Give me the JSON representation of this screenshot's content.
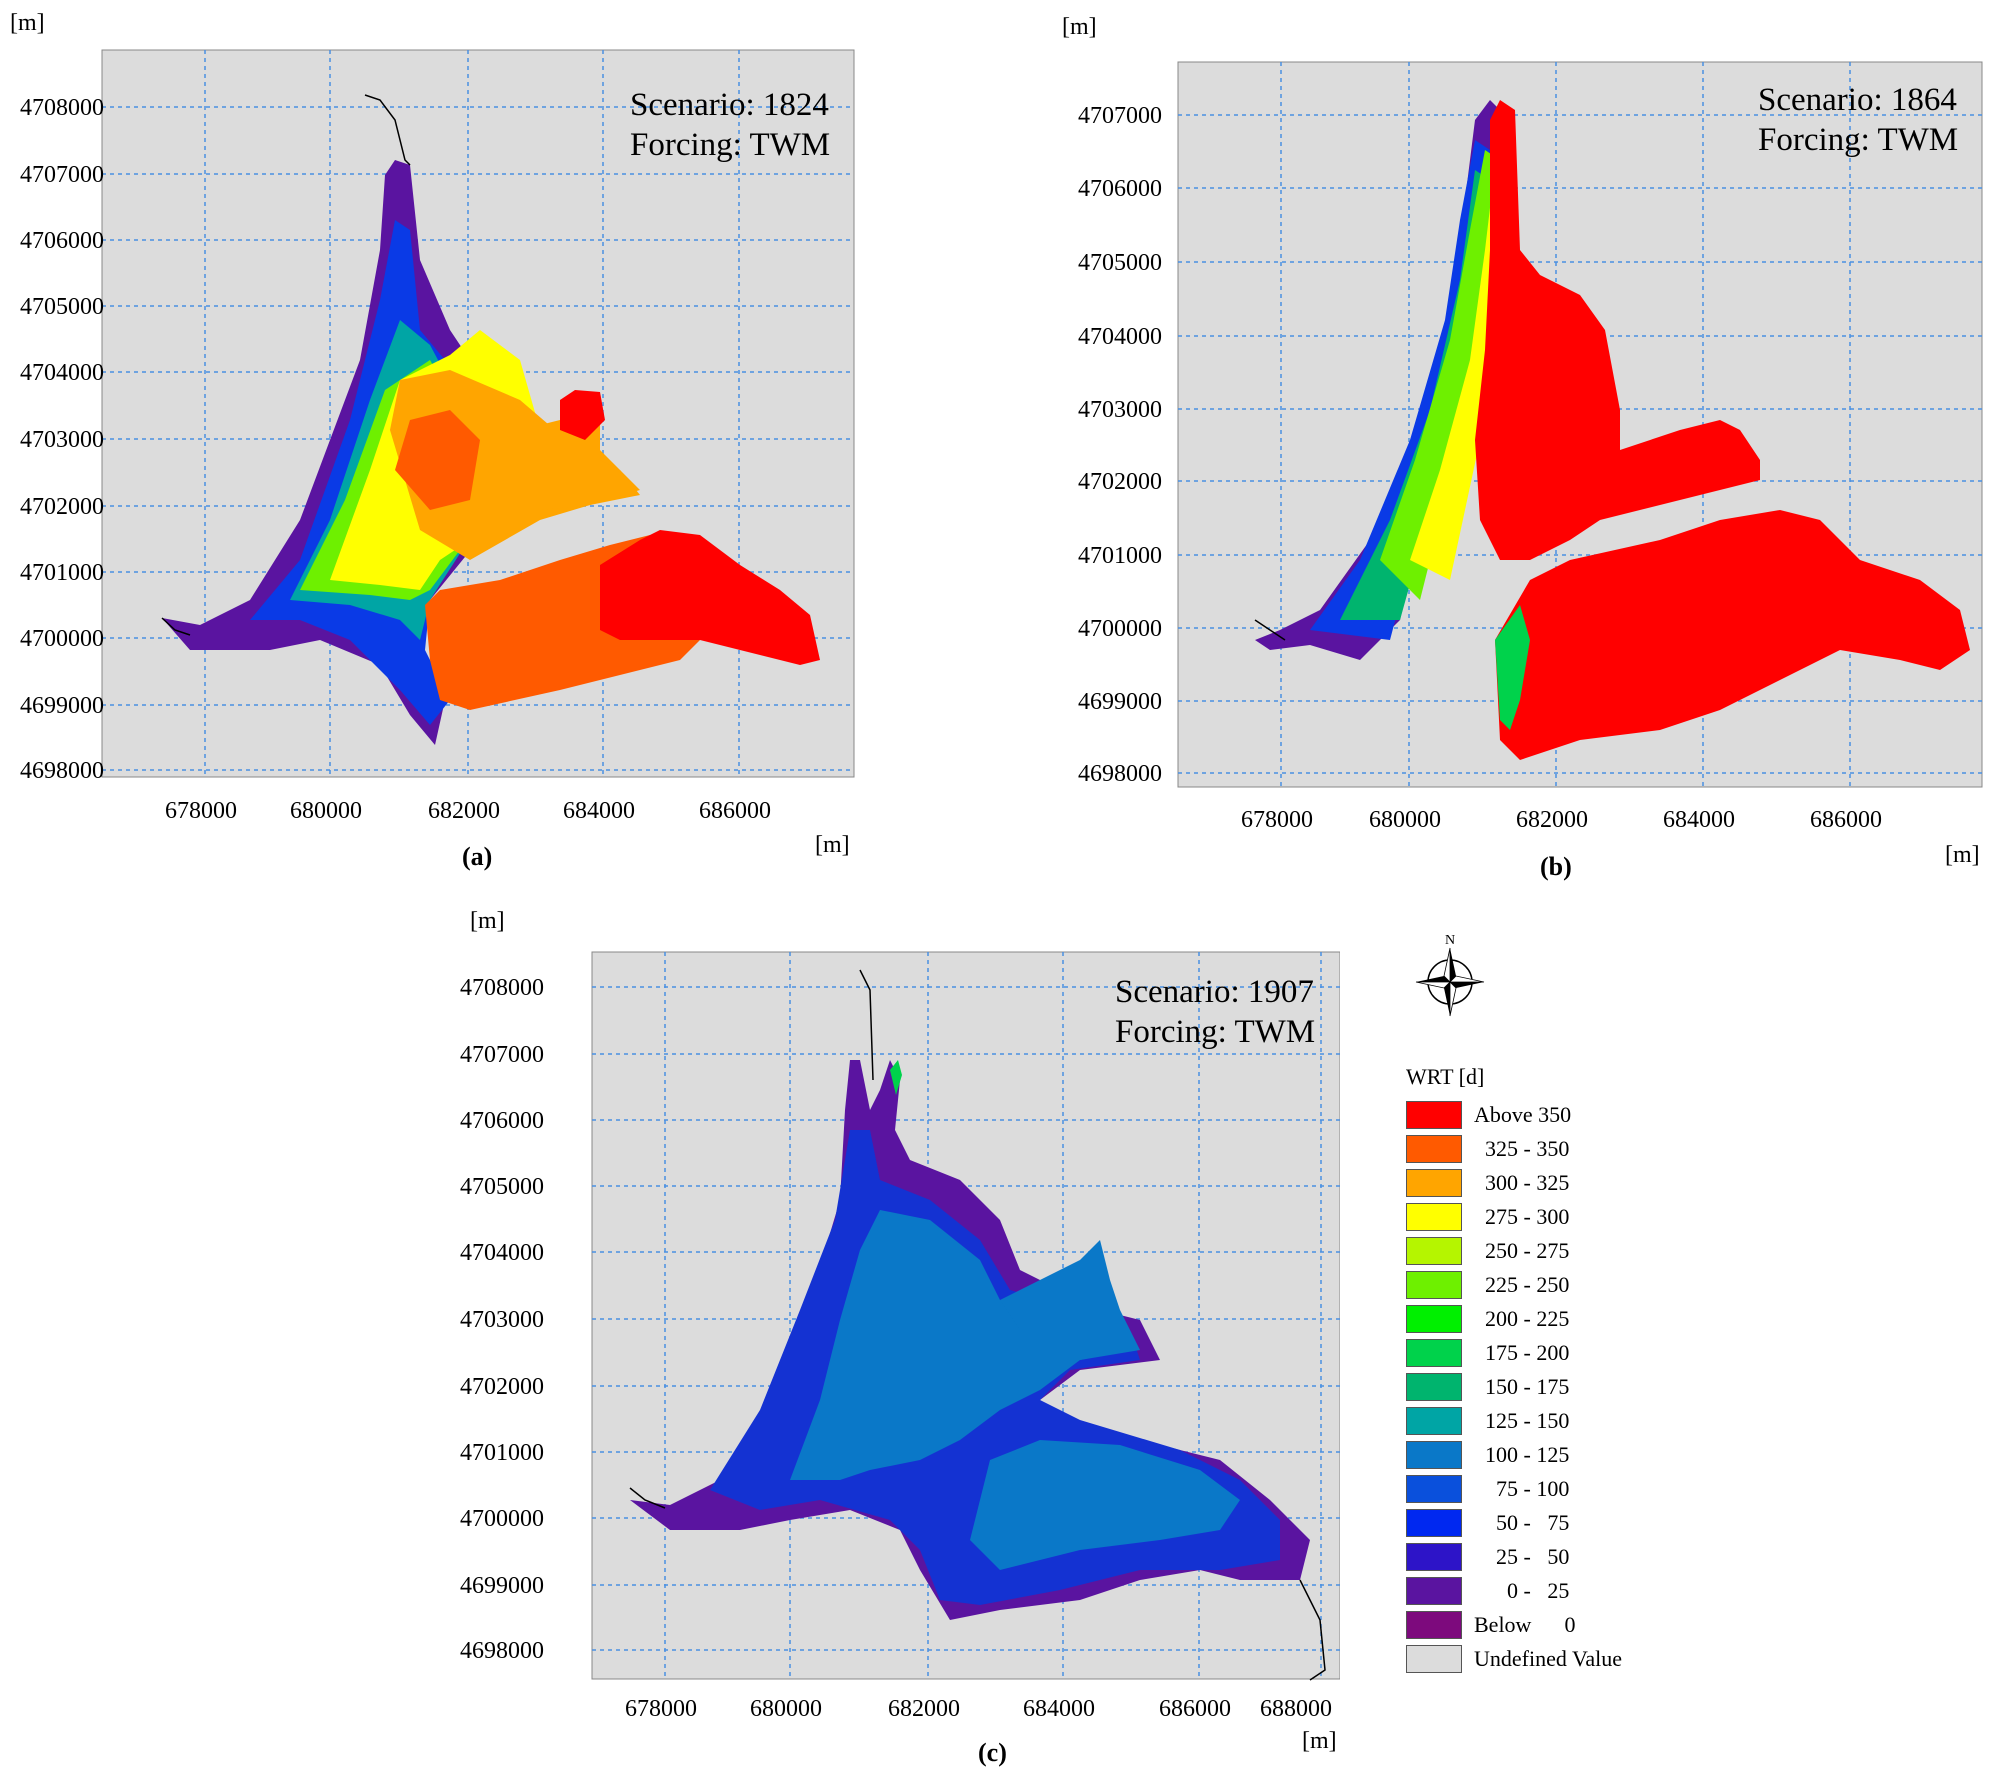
{
  "figure": {
    "axis_unit": "[m]",
    "x_ticks": [
      "678000",
      "680000",
      "682000",
      "684000",
      "686000"
    ],
    "x_ticks_c": [
      "678000",
      "680000",
      "682000",
      "684000",
      "686000",
      "688000"
    ],
    "y_ticks_a": [
      "4708000",
      "4707000",
      "4706000",
      "4705000",
      "4704000",
      "4703000",
      "4702000",
      "4701000",
      "4700000",
      "4699000",
      "4698000"
    ],
    "y_ticks_b": [
      "4707000",
      "4706000",
      "4705000",
      "4704000",
      "4703000",
      "4702000",
      "4701000",
      "4700000",
      "4699000",
      "4698000"
    ],
    "y_ticks_c": [
      "4708000",
      "4707000",
      "4706000",
      "4705000",
      "4704000",
      "4703000",
      "4702000",
      "4701000",
      "4700000",
      "4699000",
      "4698000"
    ]
  },
  "panels": [
    {
      "id": "a",
      "label": "(a)",
      "scenario": "Scenario: 1824",
      "forcing": "Forcing: TWM"
    },
    {
      "id": "b",
      "label": "(b)",
      "scenario": "Scenario: 1864",
      "forcing": "Forcing: TWM"
    },
    {
      "id": "c",
      "label": "(c)",
      "scenario": "Scenario: 1907",
      "forcing": "Forcing: TWM"
    }
  ],
  "legend": {
    "title": "WRT [d]",
    "items": [
      {
        "label": "Above 350",
        "color": "#ff0000"
      },
      {
        "label": "  325 - 350",
        "color": "#ff5a00"
      },
      {
        "label": "  300 - 325",
        "color": "#ffa500"
      },
      {
        "label": "  275 - 300",
        "color": "#ffff00"
      },
      {
        "label": "  250 - 275",
        "color": "#b5f500"
      },
      {
        "label": "  225 - 250",
        "color": "#6ef000"
      },
      {
        "label": "  200 - 225",
        "color": "#00f000"
      },
      {
        "label": "  175 - 200",
        "color": "#00d24b"
      },
      {
        "label": "  150 - 175",
        "color": "#00b46e"
      },
      {
        "label": "  125 - 150",
        "color": "#00a5a5"
      },
      {
        "label": "  100 - 125",
        "color": "#0a78c8"
      },
      {
        "label": "    75 - 100",
        "color": "#0a50dc"
      },
      {
        "label": "    50 -   75",
        "color": "#0028f0"
      },
      {
        "label": "    25 -   50",
        "color": "#2d14c8"
      },
      {
        "label": "      0 -   25",
        "color": "#5a14a0"
      },
      {
        "label": "Below      0",
        "color": "#7d0a7d"
      },
      {
        "label": "Undefined Value",
        "color": "#dcdcdc"
      }
    ]
  },
  "compass": {
    "north_label": "N"
  }
}
